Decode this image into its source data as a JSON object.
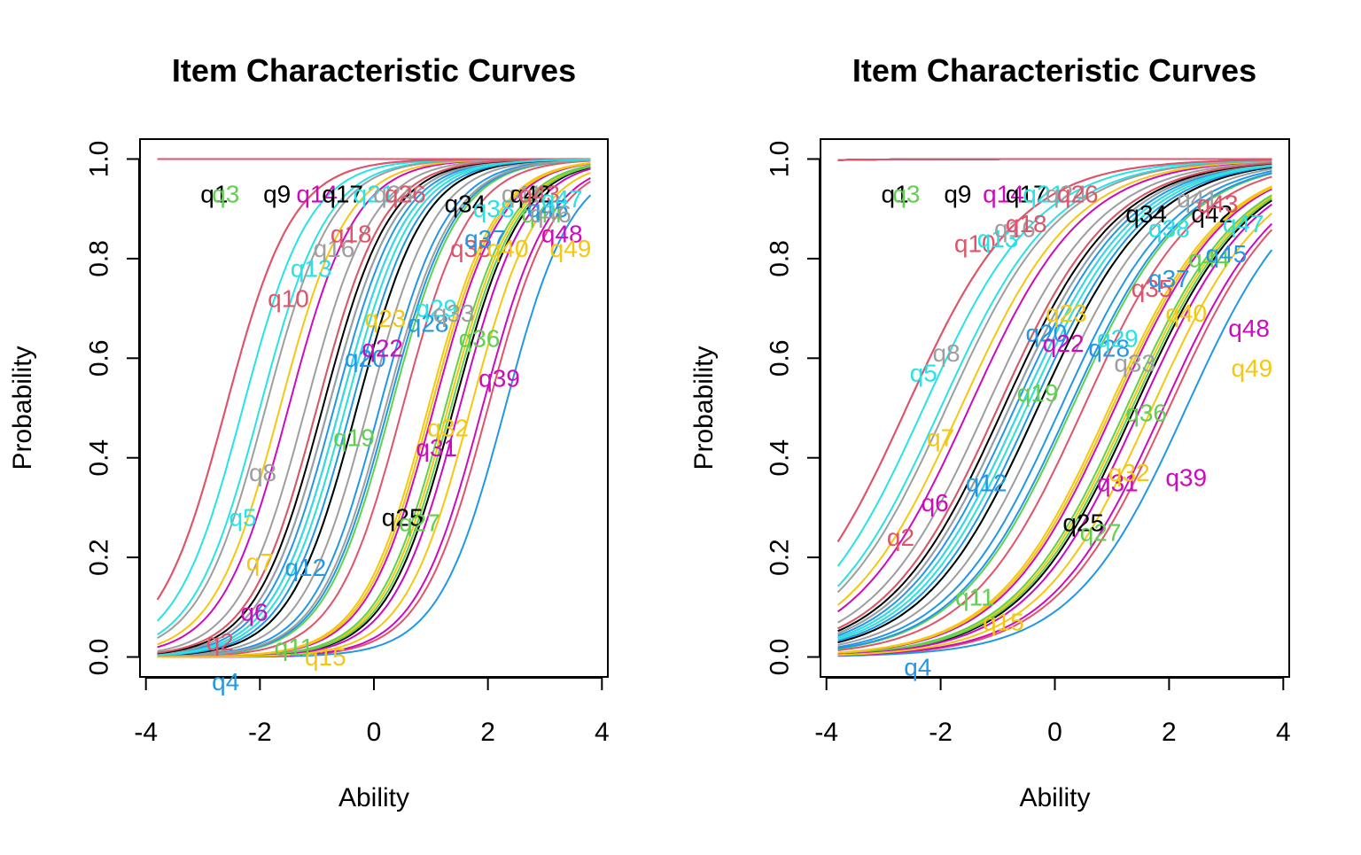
{
  "colors": {
    "black": "#000000",
    "red": "#DF536B",
    "green": "#61D04F",
    "blue": "#2297E6",
    "cyan": "#28E2E5",
    "magenta": "#CD0BBC",
    "yellow": "#F5C710",
    "gray": "#9E9E9E"
  },
  "chart_data": [
    {
      "type": "line",
      "title": "Item Characteristic Curves",
      "xlabel": "Ability",
      "ylabel": "Probability",
      "xlim": [
        -4,
        4
      ],
      "ylim": [
        0,
        1
      ],
      "x_ticks": [
        "-4",
        "-2",
        "0",
        "2",
        "4"
      ],
      "y_ticks": [
        "0.0",
        "0.2",
        "0.4",
        "0.6",
        "0.8",
        "1.0"
      ],
      "x_range": [
        -3.8,
        3.8
      ],
      "grid": false,
      "legend": "none",
      "series": [
        {
          "name": "q1",
          "color": "black",
          "a": 1.7,
          "b": -10,
          "label_x": -2.8,
          "label_y": 0.93
        },
        {
          "name": "q3",
          "color": "green",
          "a": 1.7,
          "b": -10,
          "label_x": -2.6,
          "label_y": 0.93
        },
        {
          "name": "q9",
          "color": "black",
          "a": 1.7,
          "b": -10,
          "label_x": -1.7,
          "label_y": 0.93
        },
        {
          "name": "q14",
          "color": "magenta",
          "a": 1.7,
          "b": -10,
          "label_x": -1.0,
          "label_y": 0.93
        },
        {
          "name": "q17",
          "color": "black",
          "a": 1.7,
          "b": -10,
          "label_x": -0.55,
          "label_y": 0.93
        },
        {
          "name": "q21",
          "color": "cyan",
          "a": 1.7,
          "b": -10,
          "label_x": 0.0,
          "label_y": 0.93
        },
        {
          "name": "q24",
          "color": "gray",
          "a": 1.7,
          "b": -10,
          "label_x": 0.35,
          "label_y": 0.93
        },
        {
          "name": "q26",
          "color": "red",
          "a": 1.7,
          "b": -10,
          "label_x": 0.55,
          "label_y": 0.93
        },
        {
          "name": "q2",
          "color": "red",
          "a": 1.7,
          "b": 2.0,
          "label_x": -2.7,
          "label_y": 0.03
        },
        {
          "name": "q4",
          "color": "blue",
          "a": 1.7,
          "b": 2.3,
          "label_x": -2.6,
          "label_y": -0.05
        },
        {
          "name": "q5",
          "color": "cyan",
          "a": 1.7,
          "b": -2.0,
          "label_x": -2.3,
          "label_y": 0.28
        },
        {
          "name": "q6",
          "color": "magenta",
          "a": 1.7,
          "b": -1.5,
          "label_x": -2.1,
          "label_y": 0.09
        },
        {
          "name": "q7",
          "color": "yellow",
          "a": 1.7,
          "b": -1.65,
          "label_x": -2.0,
          "label_y": 0.19
        },
        {
          "name": "q8",
          "color": "gray",
          "a": 1.7,
          "b": -1.9,
          "label_x": -1.95,
          "label_y": 0.37
        },
        {
          "name": "q10",
          "color": "red",
          "a": 1.7,
          "b": -2.6,
          "label_x": -1.5,
          "label_y": 0.72
        },
        {
          "name": "q11",
          "color": "green",
          "a": 1.7,
          "b": 1.0,
          "label_x": -1.4,
          "label_y": 0.02
        },
        {
          "name": "q12",
          "color": "blue",
          "a": 1.7,
          "b": -0.7,
          "label_x": -1.2,
          "label_y": 0.18
        },
        {
          "name": "q13",
          "color": "cyan",
          "a": 1.7,
          "b": -2.3,
          "label_x": -1.1,
          "label_y": 0.78
        },
        {
          "name": "q15",
          "color": "yellow",
          "a": 1.7,
          "b": 1.3,
          "label_x": -0.85,
          "label_y": 0.0
        },
        {
          "name": "q16",
          "color": "gray",
          "a": 1.7,
          "b": -1.2,
          "label_x": -0.7,
          "label_y": 0.82
        },
        {
          "name": "q18",
          "color": "red",
          "a": 1.7,
          "b": -2.6,
          "label_x": -0.4,
          "label_y": 0.85
        },
        {
          "name": "q19",
          "color": "green",
          "a": 1.7,
          "b": -1.0,
          "label_x": -0.35,
          "label_y": 0.44
        },
        {
          "name": "q20",
          "color": "blue",
          "a": 1.7,
          "b": -0.8,
          "label_x": -0.15,
          "label_y": 0.6
        },
        {
          "name": "q22",
          "color": "magenta",
          "a": 1.7,
          "b": -0.6,
          "label_x": 0.15,
          "label_y": 0.62
        },
        {
          "name": "q23",
          "color": "yellow",
          "a": 1.7,
          "b": -0.5,
          "label_x": 0.2,
          "label_y": 0.68
        },
        {
          "name": "q25",
          "color": "black",
          "a": 1.7,
          "b": 1.4,
          "label_x": 0.5,
          "label_y": 0.28
        },
        {
          "name": "q27",
          "color": "green",
          "a": 1.7,
          "b": 1.35,
          "label_x": 0.8,
          "label_y": 0.27
        },
        {
          "name": "q28",
          "color": "blue",
          "a": 1.7,
          "b": 0.1,
          "label_x": 0.95,
          "label_y": 0.67
        },
        {
          "name": "q29",
          "color": "cyan",
          "a": 1.7,
          "b": -0.3,
          "label_x": 1.1,
          "label_y": 0.7
        },
        {
          "name": "q31",
          "color": "magenta",
          "a": 1.7,
          "b": 1.05,
          "label_x": 1.1,
          "label_y": 0.42
        },
        {
          "name": "q32",
          "color": "yellow",
          "a": 1.7,
          "b": 0.95,
          "label_x": 1.3,
          "label_y": 0.46
        },
        {
          "name": "q33",
          "color": "gray",
          "a": 1.7,
          "b": -0.1,
          "label_x": 1.4,
          "label_y": 0.69
        },
        {
          "name": "q34",
          "color": "black",
          "a": 1.7,
          "b": -0.3,
          "label_x": 1.6,
          "label_y": 0.91
        },
        {
          "name": "q35",
          "color": "red",
          "a": 1.7,
          "b": 0.5,
          "label_x": 1.7,
          "label_y": 0.82
        },
        {
          "name": "q36",
          "color": "green",
          "a": 1.7,
          "b": 1.25,
          "label_x": 1.85,
          "label_y": 0.64
        },
        {
          "name": "q37",
          "color": "blue",
          "a": 1.7,
          "b": -0.4,
          "label_x": 1.95,
          "label_y": 0.84
        },
        {
          "name": "q38",
          "color": "cyan",
          "a": 1.7,
          "b": -0.6,
          "label_x": 2.1,
          "label_y": 0.9
        },
        {
          "name": "q39",
          "color": "magenta",
          "a": 1.7,
          "b": 1.9,
          "label_x": 2.2,
          "label_y": 0.56
        },
        {
          "name": "q40",
          "color": "yellow",
          "a": 1.7,
          "b": 1.0,
          "label_x": 2.35,
          "label_y": 0.82
        },
        {
          "name": "q41",
          "color": "gray",
          "a": 1.7,
          "b": -0.8,
          "label_x": 2.6,
          "label_y": 0.93
        },
        {
          "name": "q42",
          "color": "black",
          "a": 1.7,
          "b": -0.9,
          "label_x": 2.75,
          "label_y": 0.93
        },
        {
          "name": "q43",
          "color": "red",
          "a": 1.7,
          "b": -1.0,
          "label_x": 2.9,
          "label_y": 0.93
        },
        {
          "name": "q44",
          "color": "green",
          "a": 1.7,
          "b": 0.3,
          "label_x": 2.95,
          "label_y": 0.89
        },
        {
          "name": "q45",
          "color": "blue",
          "a": 1.7,
          "b": 0.25,
          "label_x": 3.05,
          "label_y": 0.9
        },
        {
          "name": "q46",
          "color": "gray",
          "a": 1.7,
          "b": 0.2,
          "label_x": 3.1,
          "label_y": 0.89
        },
        {
          "name": "q47",
          "color": "cyan",
          "a": 1.7,
          "b": -0.5,
          "label_x": 3.3,
          "label_y": 0.92
        },
        {
          "name": "q48",
          "color": "magenta",
          "a": 1.7,
          "b": 1.5,
          "label_x": 3.3,
          "label_y": 0.85
        },
        {
          "name": "q49",
          "color": "yellow",
          "a": 1.7,
          "b": 1.7,
          "label_x": 3.45,
          "label_y": 0.82
        }
      ]
    },
    {
      "type": "line",
      "title": "Item Characteristic Curves",
      "xlabel": "Ability",
      "ylabel": "Probability",
      "xlim": [
        -4,
        4
      ],
      "ylim": [
        0,
        1
      ],
      "x_ticks": [
        "-4",
        "-2",
        "0",
        "2",
        "4"
      ],
      "y_ticks": [
        "0.0",
        "0.2",
        "0.4",
        "0.6",
        "0.8",
        "1.0"
      ],
      "x_range": [
        -3.8,
        3.8
      ],
      "grid": false,
      "legend": "none",
      "series": [
        {
          "name": "q1",
          "color": "black",
          "a": 1.0,
          "b": -10,
          "label_x": -2.8,
          "label_y": 0.93
        },
        {
          "name": "q3",
          "color": "green",
          "a": 1.0,
          "b": -10,
          "label_x": -2.6,
          "label_y": 0.93
        },
        {
          "name": "q9",
          "color": "black",
          "a": 1.0,
          "b": -10,
          "label_x": -1.7,
          "label_y": 0.93
        },
        {
          "name": "q14",
          "color": "magenta",
          "a": 1.0,
          "b": -10,
          "label_x": -0.9,
          "label_y": 0.93
        },
        {
          "name": "q17",
          "color": "black",
          "a": 1.0,
          "b": -10,
          "label_x": -0.5,
          "label_y": 0.93
        },
        {
          "name": "q21",
          "color": "cyan",
          "a": 1.0,
          "b": -10,
          "label_x": -0.2,
          "label_y": 0.93
        },
        {
          "name": "q24",
          "color": "gray",
          "a": 1.0,
          "b": -10,
          "label_x": 0.2,
          "label_y": 0.93
        },
        {
          "name": "q26",
          "color": "red",
          "a": 1.0,
          "b": -10,
          "label_x": 0.4,
          "label_y": 0.93
        },
        {
          "name": "q2",
          "color": "red",
          "a": 1.0,
          "b": 2.0,
          "label_x": -2.7,
          "label_y": 0.24
        },
        {
          "name": "q4",
          "color": "blue",
          "a": 1.0,
          "b": 2.3,
          "label_x": -2.4,
          "label_y": -0.02
        },
        {
          "name": "q5",
          "color": "cyan",
          "a": 1.0,
          "b": -2.0,
          "label_x": -2.3,
          "label_y": 0.57
        },
        {
          "name": "q6",
          "color": "magenta",
          "a": 1.0,
          "b": -1.5,
          "label_x": -2.1,
          "label_y": 0.31
        },
        {
          "name": "q7",
          "color": "yellow",
          "a": 1.0,
          "b": -1.65,
          "label_x": -2.0,
          "label_y": 0.44
        },
        {
          "name": "q8",
          "color": "gray",
          "a": 1.0,
          "b": -1.9,
          "label_x": -1.9,
          "label_y": 0.61
        },
        {
          "name": "q10",
          "color": "red",
          "a": 1.0,
          "b": -2.6,
          "label_x": -1.4,
          "label_y": 0.83
        },
        {
          "name": "q11",
          "color": "green",
          "a": 1.0,
          "b": 1.0,
          "label_x": -1.4,
          "label_y": 0.12
        },
        {
          "name": "q12",
          "color": "blue",
          "a": 1.0,
          "b": -0.7,
          "label_x": -1.2,
          "label_y": 0.35
        },
        {
          "name": "q13",
          "color": "cyan",
          "a": 1.0,
          "b": -2.3,
          "label_x": -1.0,
          "label_y": 0.84
        },
        {
          "name": "q15",
          "color": "yellow",
          "a": 1.0,
          "b": 1.3,
          "label_x": -0.9,
          "label_y": 0.07
        },
        {
          "name": "q16",
          "color": "gray",
          "a": 1.0,
          "b": -1.2,
          "label_x": -0.7,
          "label_y": 0.86
        },
        {
          "name": "q18",
          "color": "red",
          "a": 1.0,
          "b": -2.6,
          "label_x": -0.5,
          "label_y": 0.87
        },
        {
          "name": "q19",
          "color": "green",
          "a": 1.0,
          "b": -1.0,
          "label_x": -0.3,
          "label_y": 0.53
        },
        {
          "name": "q20",
          "color": "blue",
          "a": 1.0,
          "b": -0.8,
          "label_x": -0.15,
          "label_y": 0.65
        },
        {
          "name": "q22",
          "color": "magenta",
          "a": 1.0,
          "b": -0.6,
          "label_x": 0.15,
          "label_y": 0.63
        },
        {
          "name": "q23",
          "color": "yellow",
          "a": 1.0,
          "b": -0.5,
          "label_x": 0.2,
          "label_y": 0.69
        },
        {
          "name": "q25",
          "color": "black",
          "a": 1.0,
          "b": 1.4,
          "label_x": 0.5,
          "label_y": 0.27
        },
        {
          "name": "q27",
          "color": "green",
          "a": 1.0,
          "b": 1.35,
          "label_x": 0.8,
          "label_y": 0.25
        },
        {
          "name": "q28",
          "color": "blue",
          "a": 1.0,
          "b": 0.1,
          "label_x": 0.95,
          "label_y": 0.62
        },
        {
          "name": "q29",
          "color": "cyan",
          "a": 1.0,
          "b": -0.3,
          "label_x": 1.1,
          "label_y": 0.64
        },
        {
          "name": "q31",
          "color": "magenta",
          "a": 1.0,
          "b": 1.05,
          "label_x": 1.1,
          "label_y": 0.35
        },
        {
          "name": "q32",
          "color": "yellow",
          "a": 1.0,
          "b": 0.95,
          "label_x": 1.3,
          "label_y": 0.37
        },
        {
          "name": "q33",
          "color": "gray",
          "a": 1.0,
          "b": -0.1,
          "label_x": 1.4,
          "label_y": 0.59
        },
        {
          "name": "q34",
          "color": "black",
          "a": 1.0,
          "b": -0.3,
          "label_x": 1.6,
          "label_y": 0.89
        },
        {
          "name": "q35",
          "color": "red",
          "a": 1.0,
          "b": 0.5,
          "label_x": 1.7,
          "label_y": 0.74
        },
        {
          "name": "q36",
          "color": "green",
          "a": 1.0,
          "b": 1.25,
          "label_x": 1.6,
          "label_y": 0.49
        },
        {
          "name": "q37",
          "color": "blue",
          "a": 1.0,
          "b": -0.4,
          "label_x": 2.0,
          "label_y": 0.76
        },
        {
          "name": "q38",
          "color": "cyan",
          "a": 1.0,
          "b": -0.6,
          "label_x": 2.0,
          "label_y": 0.86
        },
        {
          "name": "q39",
          "color": "magenta",
          "a": 1.0,
          "b": 1.9,
          "label_x": 2.3,
          "label_y": 0.36
        },
        {
          "name": "q40",
          "color": "yellow",
          "a": 1.0,
          "b": 1.0,
          "label_x": 2.3,
          "label_y": 0.69
        },
        {
          "name": "q41",
          "color": "gray",
          "a": 1.0,
          "b": -0.8,
          "label_x": 2.5,
          "label_y": 0.92
        },
        {
          "name": "q42",
          "color": "black",
          "a": 1.0,
          "b": -0.9,
          "label_x": 2.75,
          "label_y": 0.89
        },
        {
          "name": "q43",
          "color": "red",
          "a": 1.0,
          "b": -1.0,
          "label_x": 2.85,
          "label_y": 0.91
        },
        {
          "name": "q44",
          "color": "green",
          "a": 1.0,
          "b": 0.3,
          "label_x": 2.7,
          "label_y": 0.8
        },
        {
          "name": "q45",
          "color": "blue",
          "a": 1.0,
          "b": 0.25,
          "label_x": 3.0,
          "label_y": 0.81
        },
        {
          "name": "q47",
          "color": "cyan",
          "a": 1.0,
          "b": -0.5,
          "label_x": 3.3,
          "label_y": 0.87
        },
        {
          "name": "q48",
          "color": "magenta",
          "a": 1.0,
          "b": 1.5,
          "label_x": 3.4,
          "label_y": 0.66
        },
        {
          "name": "q49",
          "color": "yellow",
          "a": 1.0,
          "b": 1.7,
          "label_x": 3.45,
          "label_y": 0.58
        }
      ]
    }
  ]
}
